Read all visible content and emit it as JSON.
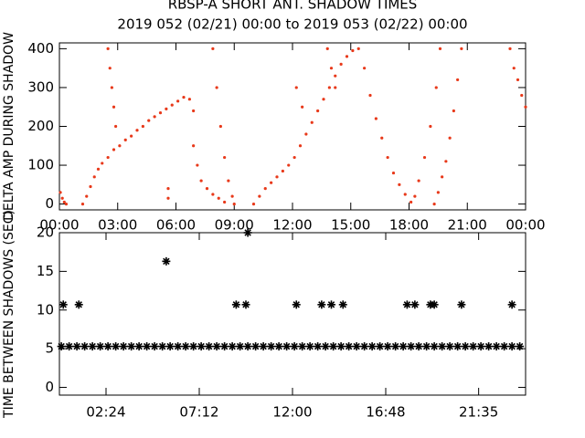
{
  "chart_data": [
    {
      "type": "scatter",
      "title": "RBSP-A SHORT ANT. SHADOW TIMES",
      "subtitle": "2019 052 (02/21) 00:00 to 2019 053 (02/22) 00:00",
      "y_label": "DELTA AMP DURING SHADOW",
      "xlim": [
        0,
        24
      ],
      "ylim": [
        -15,
        415
      ],
      "xticks": [
        {
          "value": 0,
          "label": "00:00"
        },
        {
          "value": 3,
          "label": "03:00"
        },
        {
          "value": 6,
          "label": "06:00"
        },
        {
          "value": 9,
          "label": "09:00"
        },
        {
          "value": 12,
          "label": "12:00"
        },
        {
          "value": 15,
          "label": "15:00"
        },
        {
          "value": 18,
          "label": "18:00"
        },
        {
          "value": 21,
          "label": "21:00"
        },
        {
          "value": 24,
          "label": "00:00"
        }
      ],
      "yticks": [
        0,
        100,
        200,
        300,
        400
      ],
      "series": [
        {
          "color": "#e8391a",
          "marker": "dot",
          "x": [
            0.05,
            0.15,
            0.25,
            0.35,
            1.2,
            1.4,
            1.6,
            1.8,
            2.0,
            2.2,
            2.5,
            2.8,
            3.1,
            3.4,
            3.7,
            4.0,
            4.3,
            4.6,
            4.9,
            5.2,
            5.5,
            5.8,
            6.1,
            6.4,
            6.7,
            6.9,
            2.5,
            2.6,
            2.7,
            2.8,
            2.9,
            5.6,
            5.6,
            6.9,
            7.1,
            7.3,
            7.6,
            7.9,
            8.2,
            8.5,
            7.9,
            8.1,
            8.3,
            8.5,
            8.7,
            8.9,
            9.0,
            10.0,
            10.3,
            10.6,
            10.9,
            11.2,
            11.5,
            11.8,
            12.1,
            12.4,
            12.7,
            13.0,
            13.3,
            13.6,
            13.9,
            14.2,
            14.5,
            14.8,
            15.1,
            15.4,
            15.7,
            16.0,
            16.3,
            16.6,
            16.9,
            17.2,
            17.5,
            17.8,
            18.1,
            13.8,
            14.0,
            14.2,
            12.2,
            12.5,
            19.3,
            19.5,
            19.7,
            19.9,
            20.1,
            20.3,
            20.5,
            20.7,
            19.6,
            19.4,
            19.1,
            18.8,
            18.5,
            18.3,
            23.2,
            23.4,
            23.6,
            23.8,
            24.0
          ],
          "values": [
            30,
            15,
            5,
            0,
            0,
            20,
            45,
            70,
            90,
            105,
            120,
            140,
            150,
            165,
            175,
            190,
            200,
            215,
            225,
            235,
            245,
            255,
            265,
            275,
            270,
            240,
            400,
            350,
            300,
            250,
            200,
            15,
            40,
            150,
            100,
            60,
            40,
            25,
            15,
            5,
            400,
            300,
            200,
            120,
            60,
            20,
            0,
            0,
            20,
            40,
            55,
            70,
            85,
            100,
            120,
            150,
            180,
            210,
            240,
            270,
            300,
            330,
            360,
            380,
            395,
            400,
            350,
            280,
            220,
            170,
            120,
            80,
            50,
            25,
            5,
            400,
            350,
            300,
            300,
            250,
            0,
            30,
            70,
            110,
            170,
            240,
            320,
            400,
            400,
            300,
            200,
            120,
            60,
            20,
            400,
            350,
            320,
            280,
            250
          ]
        }
      ]
    },
    {
      "type": "scatter",
      "y_label": "TIME BETWEEN SHADOWS (SEC)",
      "xlim": [
        0,
        24
      ],
      "ylim": [
        -1,
        20
      ],
      "xticks": [
        {
          "value": 2.4,
          "label": "02:24"
        },
        {
          "value": 7.2,
          "label": "07:12"
        },
        {
          "value": 12,
          "label": "12:00"
        },
        {
          "value": 16.8,
          "label": "16:48"
        },
        {
          "value": 21.5833,
          "label": "21:35"
        }
      ],
      "yticks": [
        0,
        5,
        10,
        15,
        20
      ],
      "series": [
        {
          "color": "#000000",
          "marker": "asterisk",
          "x": [
            0.1,
            0.5,
            0.9,
            1.3,
            1.7,
            2.1,
            2.5,
            2.9,
            3.3,
            3.7,
            4.1,
            4.5,
            4.9,
            5.3,
            5.7,
            6.1,
            6.5,
            6.9,
            7.3,
            7.7,
            8.1,
            8.5,
            8.9,
            9.3,
            9.7,
            10.1,
            10.5,
            10.9,
            11.3,
            11.7,
            12.1,
            12.5,
            12.9,
            13.3,
            13.7,
            14.1,
            14.5,
            14.9,
            15.3,
            15.7,
            16.1,
            16.5,
            16.9,
            17.3,
            17.7,
            18.1,
            18.5,
            18.9,
            19.3,
            19.7,
            20.1,
            20.5,
            20.9,
            21.3,
            21.7,
            22.1,
            22.5,
            22.9,
            23.3,
            23.7
          ],
          "values": [
            5.3,
            5.3,
            5.3,
            5.3,
            5.3,
            5.3,
            5.3,
            5.3,
            5.3,
            5.3,
            5.3,
            5.3,
            5.3,
            5.3,
            5.3,
            5.3,
            5.3,
            5.3,
            5.3,
            5.3,
            5.3,
            5.3,
            5.3,
            5.3,
            5.3,
            5.3,
            5.3,
            5.3,
            5.3,
            5.3,
            5.3,
            5.3,
            5.3,
            5.3,
            5.3,
            5.3,
            5.3,
            5.3,
            5.3,
            5.3,
            5.3,
            5.3,
            5.3,
            5.3,
            5.3,
            5.3,
            5.3,
            5.3,
            5.3,
            5.3,
            5.3,
            5.3,
            5.3,
            5.3,
            5.3,
            5.3,
            5.3,
            5.3,
            5.3,
            5.3
          ]
        },
        {
          "color": "#000000",
          "marker": "asterisk",
          "x": [
            0.2,
            1.0,
            5.5,
            9.1,
            9.6,
            9.7,
            12.2,
            13.5,
            14.0,
            14.6,
            17.9,
            18.3,
            19.1,
            19.3,
            20.7,
            23.3
          ],
          "values": [
            10.7,
            10.7,
            16.3,
            10.7,
            10.7,
            20,
            10.7,
            10.7,
            10.7,
            10.7,
            10.7,
            10.7,
            10.7,
            10.7,
            10.7,
            10.7
          ]
        }
      ]
    }
  ]
}
